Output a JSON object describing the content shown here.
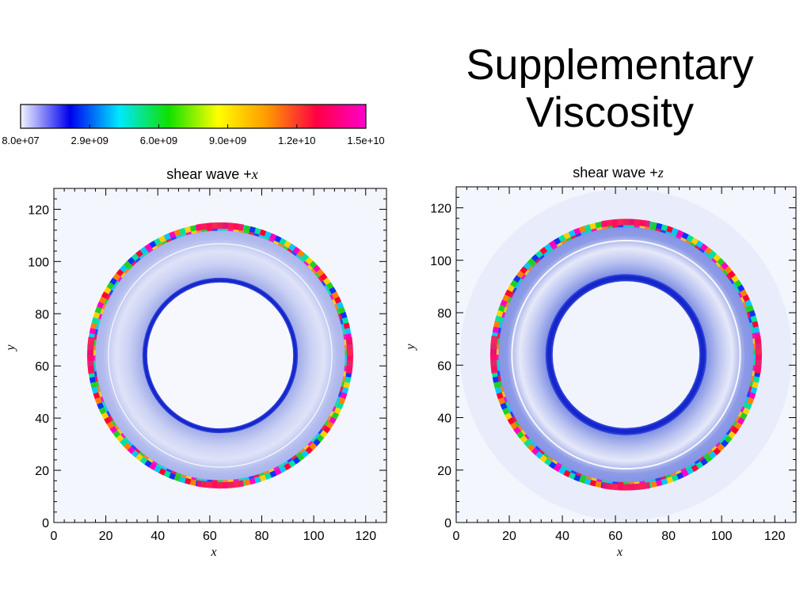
{
  "slide": {
    "title_line1": "Supplementary",
    "title_line2": "Viscosity"
  },
  "colorbar": {
    "tick_labels": [
      "8.0e+07",
      "2.9e+09",
      "6.0e+09",
      "9.0e+09",
      "1.2e+10",
      "1.5e+10"
    ],
    "colors": [
      "#f4f6ff",
      "#0000ee",
      "#00e8ff",
      "#10e000",
      "#ffff00",
      "#ff9900",
      "#ff0044",
      "#ff00cc"
    ]
  },
  "chart_data": [
    {
      "type": "heatmap",
      "title_text": "shear wave +",
      "title_var": "x",
      "xlabel": "x",
      "ylabel": "y",
      "xlim": [
        0,
        128
      ],
      "ylim": [
        0,
        128
      ],
      "xticks": [
        0,
        20,
        40,
        60,
        80,
        100,
        120
      ],
      "yticks": [
        0,
        20,
        40,
        60,
        80,
        100,
        120
      ],
      "xtick_labels": [
        "0",
        "20",
        "40",
        "60",
        "80",
        "100",
        "120"
      ],
      "ytick_labels": [
        "0",
        "20",
        "40",
        "60",
        "80",
        "100",
        "120"
      ],
      "center": [
        64,
        64
      ],
      "outer_ring_radius": 50,
      "inner_ring_radius": 29
    },
    {
      "type": "heatmap",
      "title_text": "shear wave +",
      "title_var": "z",
      "xlabel": "x",
      "ylabel": "y",
      "xlim": [
        0,
        128
      ],
      "ylim": [
        0,
        128
      ],
      "xticks": [
        0,
        20,
        40,
        60,
        80,
        100,
        120
      ],
      "yticks": [
        0,
        20,
        40,
        60,
        80,
        100,
        120
      ],
      "xtick_labels": [
        "0",
        "20",
        "40",
        "60",
        "80",
        "100",
        "120"
      ],
      "ytick_labels": [
        "0",
        "20",
        "40",
        "60",
        "80",
        "100",
        "120"
      ],
      "center": [
        64,
        64
      ],
      "outer_ring_radius": 50,
      "inner_ring_radius": 29
    }
  ]
}
